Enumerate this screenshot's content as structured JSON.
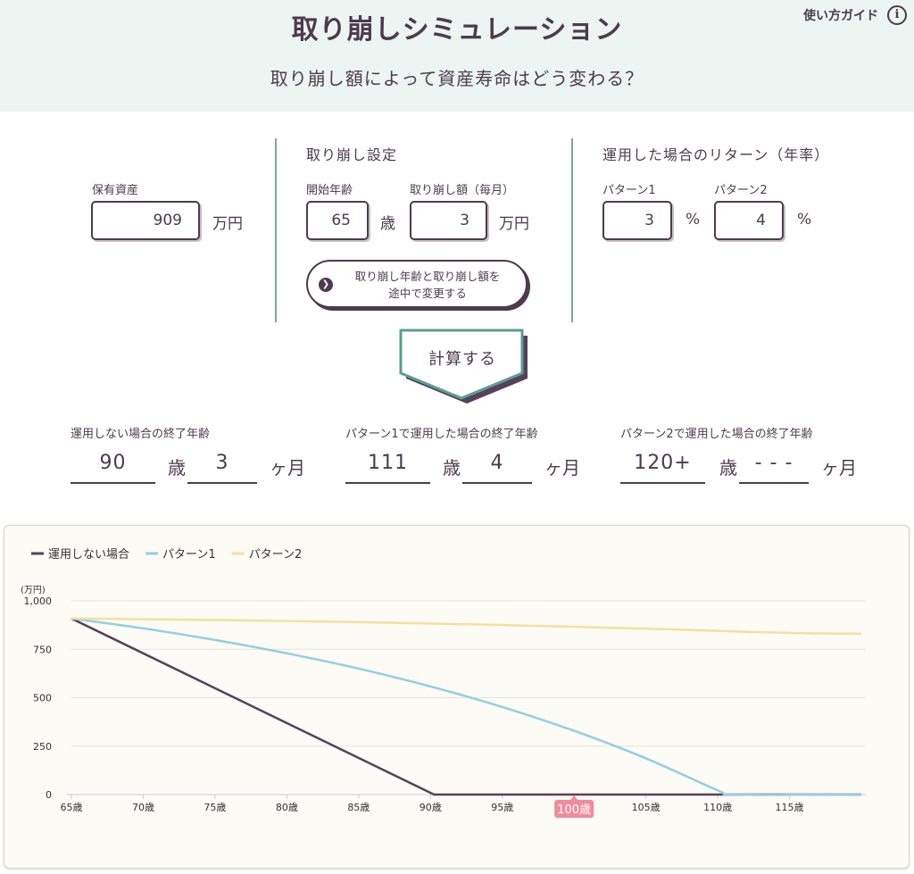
{
  "header": {
    "title": "取り崩しシミュレーション",
    "subtitle": "取り崩し額によって資産寿命はどう変わる？",
    "guide_label": "使い方ガイド",
    "guide_icon": "info-icon"
  },
  "assets": {
    "label": "保有資産",
    "value": "909",
    "unit": "万円"
  },
  "withdrawal": {
    "title": "取り崩し設定",
    "start_age_label": "開始年齢",
    "start_age_value": "65",
    "start_age_unit": "歳",
    "amount_label": "取り崩し額（毎月）",
    "amount_value": "3",
    "amount_unit": "万円",
    "change_button_line1": "取り崩し年齢と取り崩し額を",
    "change_button_line2": "途中で変更する"
  },
  "returns": {
    "title": "運用した場合のリターン（年率）",
    "p1_label": "パターン1",
    "p1_value": "3",
    "p1_unit": "%",
    "p2_label": "パターン2",
    "p2_value": "4",
    "p2_unit": "%"
  },
  "calc_button": "計算する",
  "results": [
    {
      "label": "運用しない場合の終了年齢",
      "years": "90",
      "years_unit": "歳",
      "months": "3",
      "months_unit": "ヶ月"
    },
    {
      "label": "パターン1で運用した場合の終了年齢",
      "years": "111",
      "years_unit": "歳",
      "months": "4",
      "months_unit": "ヶ月"
    },
    {
      "label": "パターン2で運用した場合の終了年齢",
      "years": "120+",
      "years_unit": "歳",
      "months": "- - -",
      "months_unit": "ヶ月"
    }
  ],
  "chart_data": {
    "type": "line",
    "y_unit_label": "(万円)",
    "ylim": [
      0,
      1000
    ],
    "y_ticks": [
      0,
      250,
      500,
      750,
      1000
    ],
    "y_tick_labels": [
      "0",
      "250",
      "500",
      "750",
      "1,000"
    ],
    "xlim": [
      65,
      120
    ],
    "x_ticks": [
      65,
      70,
      75,
      80,
      85,
      90,
      95,
      100,
      105,
      110,
      115
    ],
    "x_tick_labels": [
      "65歳",
      "70歳",
      "75歳",
      "80歳",
      "85歳",
      "90歳",
      "95歳",
      "100歳",
      "105歳",
      "110歳",
      "115歳"
    ],
    "highlight_tick": "100歳",
    "grid": true,
    "legend_position": "top-left",
    "series": [
      {
        "name": "運用しない場合",
        "color": "#57405a",
        "x": [
          65,
          90.25,
          120
        ],
        "y": [
          909,
          0,
          0
        ]
      },
      {
        "name": "パターン1",
        "color": "#93cfe0",
        "x": [
          65,
          70,
          75,
          80,
          85,
          90,
          95,
          100,
          105,
          110,
          111.3,
          120
        ],
        "y": [
          909,
          858,
          798,
          729,
          650,
          558,
          452,
          329,
          187,
          22,
          0,
          0
        ]
      },
      {
        "name": "パターン2",
        "color": "#f7df9c",
        "x": [
          65,
          70,
          75,
          80,
          85,
          90,
          95,
          100,
          105,
          110,
          115,
          120
        ],
        "y": [
          909,
          905,
          901,
          896,
          890,
          883,
          875,
          866,
          856,
          845,
          834,
          830
        ]
      }
    ]
  }
}
